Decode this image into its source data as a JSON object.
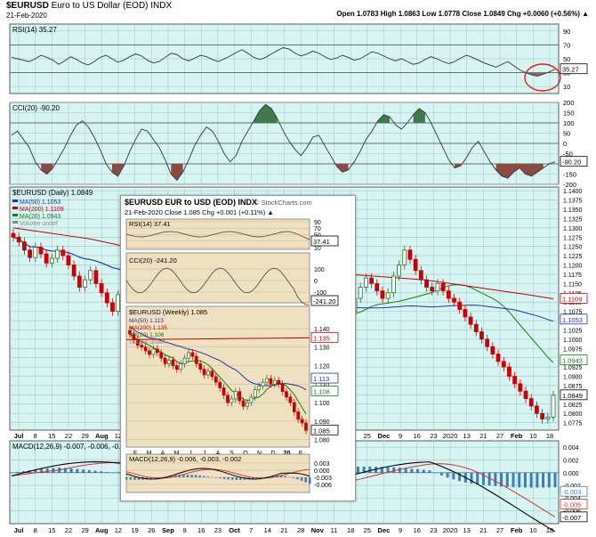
{
  "header": {
    "symbol": "$EURUSD",
    "name": "Euro to US Dollar (EOD)",
    "exchange": "INDX",
    "date": "21-Feb-2020",
    "quote": "Open 1.0783 High 1.0863 Low 1.0778 Close 1.0849 Chg +0.0060 (+0.56%) ▲"
  },
  "chart_data": [
    {
      "type": "line",
      "title": "RSI(14) 35.27",
      "ylim": [
        0,
        100
      ],
      "yticks": [
        10,
        30,
        50,
        70,
        90
      ],
      "last_label": "35.27",
      "values": [
        52,
        50,
        48,
        46,
        50,
        55,
        52,
        48,
        42,
        47,
        53,
        49,
        44,
        41,
        46,
        52,
        55,
        50,
        45,
        48,
        53,
        57,
        54,
        48,
        44,
        46,
        52,
        58,
        56,
        50,
        47,
        51,
        55,
        53,
        49,
        46,
        50,
        54,
        59,
        63,
        58,
        52,
        49,
        52,
        57,
        62,
        66,
        64,
        58,
        54,
        57,
        61,
        58,
        53,
        49,
        51,
        55,
        52,
        48,
        50,
        55,
        60,
        58,
        54,
        50,
        47,
        50,
        46,
        42,
        44,
        49,
        53,
        50,
        46,
        43,
        46,
        51,
        55,
        52,
        48,
        44,
        41,
        38,
        42,
        46,
        40,
        34,
        30,
        27,
        25,
        28,
        31,
        35
      ]
    },
    {
      "type": "line",
      "title": "CCI(20) -90.20",
      "ylim": [
        -200,
        200
      ],
      "yticks": [
        -200,
        -150,
        -100,
        -50,
        0,
        50,
        100,
        150,
        200
      ],
      "last_label": "-90.20",
      "values": [
        40,
        60,
        20,
        -20,
        -90,
        -130,
        -150,
        -120,
        -70,
        -20,
        40,
        90,
        110,
        80,
        30,
        -30,
        -100,
        -140,
        -160,
        -110,
        -40,
        20,
        70,
        60,
        20,
        -20,
        -80,
        -150,
        -180,
        -140,
        -80,
        -10,
        40,
        80,
        60,
        10,
        -50,
        -90,
        -60,
        10,
        60,
        110,
        160,
        190,
        170,
        120,
        60,
        10,
        -30,
        -60,
        -20,
        30,
        40,
        -10,
        -60,
        -110,
        -140,
        -130,
        -90,
        -40,
        20,
        60,
        110,
        140,
        130,
        90,
        70,
        100,
        140,
        170,
        150,
        100,
        40,
        -20,
        -80,
        -120,
        -110,
        -70,
        -20,
        10,
        -40,
        -90,
        -130,
        -160,
        -170,
        -140,
        -120,
        -150,
        -160,
        -140,
        -120,
        -100,
        -90
      ]
    },
    {
      "type": "candlestick",
      "title": "$EURUSD (Daily) 1.0849",
      "legend": [
        {
          "name": "MA(50) 1.1053",
          "color": "#2233aa"
        },
        {
          "name": "MA(200) 1.1109",
          "color": "#c00000"
        },
        {
          "name": "MA(20) 1.0943",
          "color": "#108010"
        },
        {
          "name": "Volume undef",
          "color": "#888888"
        }
      ],
      "ylim": [
        1.0755,
        1.141
      ],
      "yticks": [
        "1.1400",
        "1.1375",
        "1.1350",
        "1.1325",
        "1.1300",
        "1.1275",
        "1.1250",
        "1.1225",
        "1.1200",
        "1.1175",
        "1.1150",
        "1.1125",
        "1.1100",
        "1.1075",
        "1.1050",
        "1.1025",
        "1.1000",
        "1.0975",
        "1.0950",
        "1.0925",
        "1.0900",
        "1.0875",
        "1.0850",
        "1.0825",
        "1.0800",
        "1.0775"
      ],
      "price_labels": [
        {
          "text": "1.1109",
          "value": 1.1109,
          "color": "#c00000"
        },
        {
          "text": "1.1053",
          "value": 1.1053,
          "color": "#2233aa"
        },
        {
          "text": "1.0943",
          "value": 1.0943,
          "color": "#108010"
        },
        {
          "text": "1.0849",
          "value": 1.0849,
          "color": "#000000"
        }
      ],
      "closes": [
        1.1275,
        1.1262,
        1.124,
        1.122,
        1.1248,
        1.123,
        1.1205,
        1.1218,
        1.124,
        1.1225,
        1.12,
        1.117,
        1.114,
        1.116,
        1.1185,
        1.115,
        1.1125,
        1.1098,
        1.1075,
        1.112,
        1.115,
        1.1165,
        1.1185,
        1.12,
        1.121,
        1.118,
        1.116,
        1.112,
        1.108,
        1.106,
        1.105,
        1.107,
        1.104,
        1.101,
        1.103,
        1.106,
        1.109,
        1.1055,
        1.103,
        1.1005,
        1.0985,
        1.1,
        1.103,
        1.105,
        1.102,
        1.1,
        1.103,
        1.106,
        1.109,
        1.112,
        1.115,
        1.1165,
        1.114,
        1.111,
        1.108,
        1.106,
        1.104,
        1.1015,
        1.1,
        1.102,
        1.104,
        1.1075,
        1.111,
        1.114,
        1.1165,
        1.115,
        1.113,
        1.111,
        1.1125,
        1.117,
        1.12,
        1.124,
        1.1215,
        1.1185,
        1.116,
        1.114,
        1.113,
        1.115,
        1.113,
        1.111,
        1.11,
        1.108,
        1.106,
        1.104,
        1.102,
        1.1,
        1.098,
        1.096,
        1.094,
        1.0925,
        1.09,
        1.088,
        1.086,
        1.084,
        1.082,
        1.08,
        1.0785,
        1.079,
        1.0849
      ],
      "ma200": [
        1.13,
        1.129,
        1.128,
        1.127,
        1.1255,
        1.124,
        1.1225,
        1.121,
        1.12,
        1.1195,
        1.119,
        1.1185,
        1.118,
        1.1175,
        1.117,
        1.1165,
        1.116,
        1.115,
        1.114,
        1.113,
        1.112,
        1.1109
      ]
    },
    {
      "type": "line",
      "title": "MACD(12,26,9) -0.007, -0.006, -0.000",
      "ylim": [
        -0.008,
        0.005
      ],
      "yticks": [
        "0.004",
        "0.002",
        "0.000",
        "-0.002",
        "-0.004",
        "-0.006"
      ],
      "last_labels": [
        "-0.003",
        "-0.005",
        "-0.007"
      ]
    },
    {
      "type": "candlestick",
      "title": "$EURUSD EUR to USD (EOD) INDX",
      "subtitle": "21-Feb-2020  Close 1.085  Chg +0.001 (+0.11%) ▲",
      "rsi_title": "RSI(14) 37.41",
      "rsi_yticks": [
        "90",
        "70",
        "50",
        "30",
        "10"
      ],
      "rsi_last": "37.41",
      "cci_title": "CCI(20) -241.20",
      "cci_yticks": [
        "100",
        "0",
        "-100"
      ],
      "cci_last": "-241.20",
      "price_title": "$EURUSD (Weekly) 1.085",
      "legend": [
        {
          "name": "MA(50) 1.113",
          "color": "#2233aa"
        },
        {
          "name": "MA(200) 1.135",
          "color": "#c00000"
        },
        {
          "name": "MA(20) 1.106",
          "color": "#108010"
        },
        {
          "name": "Volume undef",
          "color": "#888888"
        }
      ],
      "ylim": [
        1.076,
        1.152
      ],
      "yticks": [
        "1.140",
        "1.130",
        "1.120",
        "1.110",
        "1.100",
        "1.090",
        "1.080"
      ],
      "price_labels": [
        {
          "text": "1.135",
          "value": 1.135,
          "color": "#c00000"
        },
        {
          "text": "1.113",
          "value": 1.113,
          "color": "#2233aa"
        },
        {
          "text": "1.106",
          "value": 1.106,
          "color": "#108010"
        },
        {
          "text": "1.085",
          "value": 1.085,
          "color": "#000000"
        }
      ],
      "x_labels": [
        "F",
        "M",
        "A",
        "M",
        "J",
        "J",
        "A",
        "S",
        "O",
        "N",
        "D",
        "20",
        "F"
      ],
      "macd_title": "MACD(12,26,9) -0.006, -0.003, -0.002",
      "macd_yticks": [
        "0.003",
        "0.000",
        "-0.003",
        "-0.006"
      ],
      "closes": [
        1.137,
        1.134,
        1.131,
        1.13,
        1.128,
        1.126,
        1.129,
        1.127,
        1.124,
        1.121,
        1.123,
        1.12,
        1.118,
        1.121,
        1.124,
        1.127,
        1.125,
        1.121,
        1.118,
        1.115,
        1.117,
        1.114,
        1.111,
        1.108,
        1.104,
        1.1,
        1.102,
        1.106,
        1.101,
        1.098,
        1.1,
        1.103,
        1.107,
        1.109,
        1.111,
        1.113,
        1.11,
        1.112,
        1.11,
        1.106,
        1.103,
        1.1,
        1.095,
        1.091,
        1.089,
        1.085
      ]
    }
  ],
  "x_axis_top": [
    "Jul",
    "8",
    "15",
    "22",
    "29",
    "Aug",
    "12",
    "19",
    "26",
    "Sep",
    "9",
    "16",
    "23",
    "Oct",
    "7",
    "14",
    "21",
    "28",
    "Nov",
    "11",
    "18",
    "25",
    "Dec",
    "9",
    "16",
    "23",
    "2020",
    "13",
    "21",
    "27",
    "Feb",
    "10",
    "18"
  ],
  "x_axis_bottom": [
    "Jul",
    "8",
    "15",
    "22",
    "29",
    "Aug",
    "12",
    "19",
    "26",
    "Sep",
    "9",
    "16",
    "23",
    "Oct",
    "7",
    "14",
    "21",
    "28",
    "Nov",
    "11",
    "18",
    "25",
    "Dec",
    "9",
    "16",
    "23",
    "2020",
    "13",
    "21",
    "27",
    "Feb",
    "10",
    "18"
  ],
  "branding": "© StockCharts.com",
  "colors": {
    "panel_bg": "#d7f4f3",
    "grid": "#9cc7c6",
    "up": "#2d6b2d",
    "down": "#cc0000",
    "inset_bg": "#efe0c2",
    "highlight_circle": "#e02020"
  }
}
